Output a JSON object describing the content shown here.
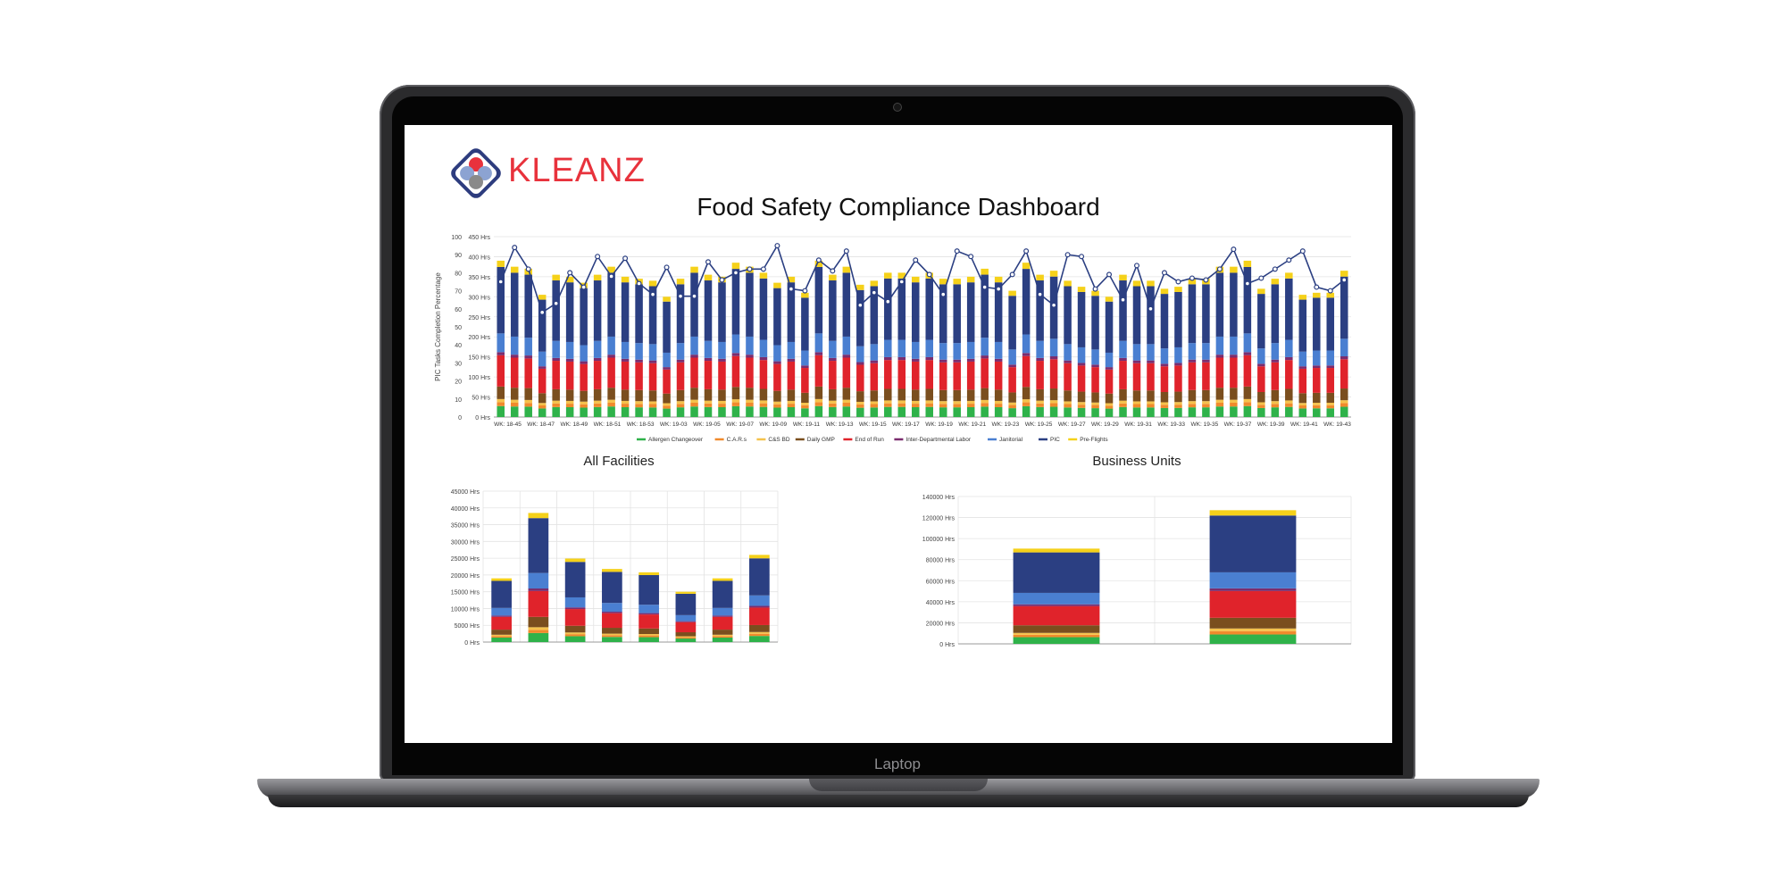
{
  "device": {
    "chin_label": "Laptop"
  },
  "brand": {
    "logo_text": "KLEANZ"
  },
  "dashboard": {
    "title": "Food Safety Compliance Dashboard"
  },
  "colors": {
    "Allergen Changeover": "#2fb24a",
    "C.A.R.s": "#f08a2c",
    "C&S BD": "#f5c24c",
    "Daily GMP": "#7a4e1e",
    "End of Run": "#e0232b",
    "Inter-Departmental Labor": "#7b2d6e",
    "Janitorial": "#4a7fd1",
    "PIC": "#2b3f82",
    "Pre-Flights": "#f5d11a",
    "line": "#2b3f82"
  },
  "chart_data": [
    {
      "type": "bar",
      "subtype": "stacked-bar-with-line",
      "title": "",
      "ylabel": "PIC Tasks Completion Percentage",
      "y2label": "",
      "ylim": [
        0,
        450
      ],
      "y_ticks_hrs": [
        "0 Hrs",
        "50 Hrs",
        "100 Hrs",
        "150 Hrs",
        "200 Hrs",
        "250 Hrs",
        "300 Hrs",
        "350 Hrs",
        "400 Hrs",
        "450 Hrs"
      ],
      "y_ticks_pct": [
        "0",
        "10",
        "20",
        "30",
        "40",
        "50",
        "60",
        "70",
        "80",
        "90",
        "100"
      ],
      "x_tick_labels": [
        "WK: 18-45",
        "WK: 18-47",
        "WK: 18-49",
        "WK: 18-51",
        "WK: 18-53",
        "WK: 19-03",
        "WK: 19-05",
        "WK: 19-07",
        "WK: 19-09",
        "WK: 19-11",
        "WK: 19-13",
        "WK: 19-15",
        "WK: 19-17",
        "WK: 19-19",
        "WK: 19-21",
        "WK: 19-23",
        "WK: 19-25",
        "WK: 19-27",
        "WK: 19-29",
        "WK: 19-31",
        "WK: 19-33",
        "WK: 19-35",
        "WK: 19-37",
        "WK: 19-39",
        "WK: 19-41",
        "WK: 19-43"
      ],
      "legend": [
        "Allergen Changeover",
        "C.A.R.s",
        "C&S BD",
        "Daily GMP",
        "End of Run",
        "Inter-Departmental Labor",
        "Janitorial",
        "PIC",
        "Pre-Flights"
      ],
      "legend_position": "bottom",
      "grid": true,
      "totals_hrs": [
        390,
        375,
        370,
        305,
        355,
        350,
        335,
        355,
        375,
        350,
        345,
        340,
        300,
        345,
        375,
        355,
        350,
        385,
        375,
        360,
        335,
        350,
        310,
        390,
        355,
        375,
        330,
        340,
        360,
        360,
        350,
        360,
        345,
        345,
        350,
        370,
        350,
        315,
        385,
        355,
        365,
        340,
        325,
        315,
        300,
        355,
        340,
        340,
        320,
        325,
        345,
        345,
        375,
        375,
        390,
        320,
        345,
        360,
        305,
        310,
        310,
        365
      ],
      "line_pct": [
        75,
        94,
        82,
        58,
        63,
        80,
        72,
        89,
        78,
        88,
        74,
        68,
        83,
        67,
        67,
        86,
        76,
        80,
        82,
        82,
        95,
        71,
        70,
        87,
        81,
        92,
        62,
        69,
        64,
        75,
        87,
        79,
        68,
        92,
        89,
        72,
        71,
        79,
        92,
        68,
        62,
        90,
        89,
        71,
        79,
        65,
        84,
        60,
        80,
        75,
        77,
        76,
        82,
        93,
        74,
        77,
        82,
        87,
        92,
        72,
        70,
        76
      ]
    },
    {
      "type": "bar",
      "subtype": "stacked-bar",
      "title": "All Facilities",
      "ylim": [
        0,
        45000
      ],
      "y_ticks": [
        "0 Hrs",
        "5000 Hrs",
        "10000 Hrs",
        "15000 Hrs",
        "20000 Hrs",
        "25000 Hrs",
        "30000 Hrs",
        "35000 Hrs",
        "40000 Hrs",
        "45000 Hrs"
      ],
      "categories": [
        "",
        "",
        "",
        "",
        "",
        "",
        "",
        ""
      ],
      "totals": [
        19000,
        38500,
        24900,
        21800,
        20800,
        15000,
        19000,
        26000
      ],
      "grid": true
    },
    {
      "type": "bar",
      "subtype": "stacked-bar",
      "title": "Business Units",
      "ylim": [
        0,
        140000
      ],
      "y_ticks": [
        "0 Hrs",
        "20000 Hrs",
        "40000 Hrs",
        "60000 Hrs",
        "80000 Hrs",
        "100000 Hrs",
        "120000 Hrs",
        "140000 Hrs"
      ],
      "categories": [
        "",
        ""
      ],
      "totals": [
        90500,
        127000
      ],
      "grid": true
    }
  ]
}
